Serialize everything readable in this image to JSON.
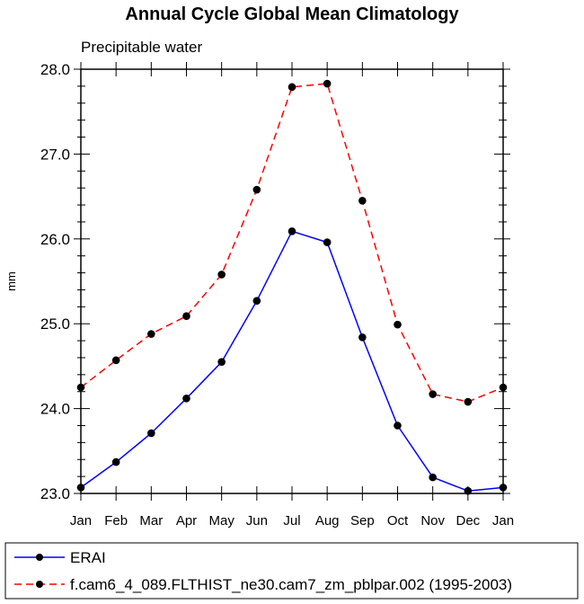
{
  "chart_data": {
    "type": "line",
    "title": "Annual Cycle Global Mean Climatology",
    "subtitle": "Precipitable water",
    "ylabel": "mm",
    "xlabel": "",
    "ylim": [
      23.0,
      28.0
    ],
    "yticks": [
      "23.0",
      "24.0",
      "25.0",
      "26.0",
      "27.0",
      "28.0"
    ],
    "ytick_values": [
      23.0,
      24.0,
      25.0,
      26.0,
      27.0,
      28.0
    ],
    "categories": [
      "Jan",
      "Feb",
      "Mar",
      "Apr",
      "May",
      "Jun",
      "Jul",
      "Aug",
      "Sep",
      "Oct",
      "Nov",
      "Dec",
      "Jan"
    ],
    "grid": false,
    "legend_position": "bottom",
    "series": [
      {
        "name": "ERAI",
        "color": "#0000ff",
        "style": "solid",
        "values": [
          23.07,
          23.37,
          23.71,
          24.12,
          24.55,
          25.27,
          26.09,
          25.96,
          24.84,
          23.8,
          23.19,
          23.03,
          23.07
        ]
      },
      {
        "name": "f.cam6_4_089.FLTHIST_ne30.cam7_zm_pblpar.002 (1995-2003)",
        "color": "#ff0000",
        "style": "dashed",
        "values": [
          24.25,
          24.57,
          24.88,
          25.09,
          25.58,
          26.58,
          27.79,
          27.83,
          26.45,
          24.99,
          24.17,
          24.08,
          24.25
        ]
      }
    ]
  }
}
